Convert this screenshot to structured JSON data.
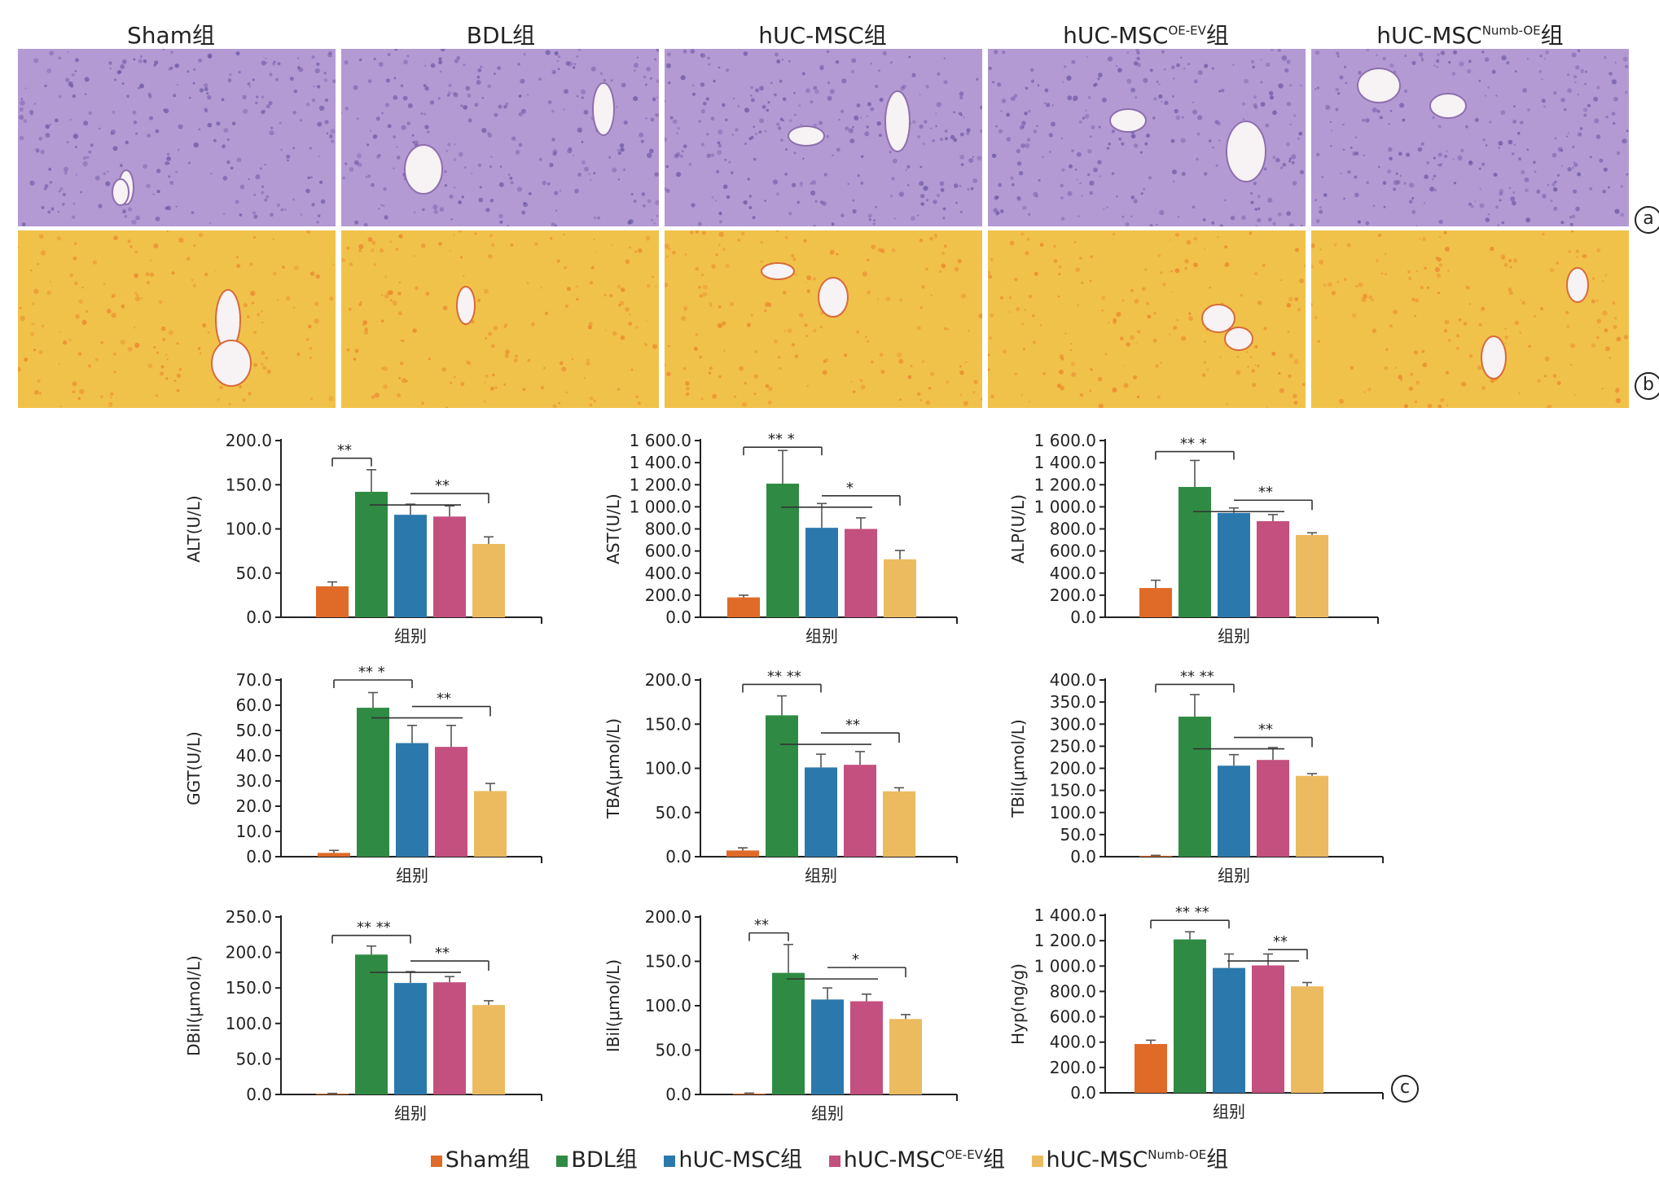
{
  "groups": [
    {
      "base": "Sham",
      "sup": "",
      "tail": "组",
      "color": "#e06a27"
    },
    {
      "base": "BDL",
      "sup": "",
      "tail": "组",
      "color": "#2f8b43"
    },
    {
      "base": "hUC-MSC",
      "sup": "",
      "tail": "组",
      "color": "#2b79ac"
    },
    {
      "base": "hUC-MSC",
      "sup": "OE-EV",
      "tail": "组",
      "color": "#c4507f"
    },
    {
      "base": "hUC-MSC",
      "sup": "Numb-OE",
      "tail": "组",
      "color": "#ecbb5f"
    }
  ],
  "panel_tags": {
    "a": "a",
    "b": "b",
    "c": "c"
  },
  "stain_colors": {
    "he_base": "#b49ad3",
    "he_dark": "#6d5aa6",
    "sr_base": "#f1c24a",
    "sr_dark": "#e9872e"
  },
  "chart_data": [
    {
      "type": "bar",
      "ylabel": "ALT(U/L)",
      "xlabel": "组别",
      "ylim": [
        0,
        200
      ],
      "yticks": [
        "0.0",
        "50.0",
        "100.0",
        "150.0",
        "200.0"
      ],
      "values": [
        35,
        142,
        116,
        114,
        83
      ],
      "errors": [
        5,
        25,
        12,
        12,
        8
      ],
      "annotations": [
        {
          "from": 0,
          "to": 1,
          "level": 180,
          "text": "**",
          "drop": true
        },
        {
          "from": 2,
          "to": 4,
          "level": 140,
          "text": "**",
          "drop": false
        }
      ]
    },
    {
      "type": "bar",
      "ylabel": "AST(U/L)",
      "xlabel": "组别",
      "ylim": [
        0,
        1600
      ],
      "yticks": [
        "0.0",
        "200.0",
        "400.0",
        "600.0",
        "800.0",
        "1 000.0",
        "1 200.0",
        "1 400.0",
        "1 600.0"
      ],
      "values": [
        180,
        1210,
        810,
        800,
        525
      ],
      "errors": [
        20,
        300,
        220,
        100,
        80
      ],
      "annotations": [
        {
          "from": 0,
          "to": 2,
          "level": 1540,
          "text": "** *",
          "drop": true
        },
        {
          "from": 2,
          "to": 4,
          "level": 1100,
          "text": "*",
          "drop": false
        }
      ]
    },
    {
      "type": "bar",
      "ylabel": "ALP(U/L)",
      "xlabel": "组别",
      "ylim": [
        0,
        1600
      ],
      "yticks": [
        "0.0",
        "200.0",
        "400.0",
        "600.0",
        "800.0",
        "1 000.0",
        "1 200.0",
        "1 400.0",
        "1 600.0"
      ],
      "values": [
        265,
        1180,
        945,
        870,
        745
      ],
      "errors": [
        70,
        240,
        45,
        60,
        20
      ],
      "annotations": [
        {
          "from": 0,
          "to": 2,
          "level": 1500,
          "text": "** *",
          "drop": true
        },
        {
          "from": 2,
          "to": 4,
          "level": 1060,
          "text": "**",
          "drop": false
        }
      ]
    },
    {
      "type": "bar",
      "ylabel": "GGT(U/L)",
      "xlabel": "组别",
      "ylim": [
        0,
        70
      ],
      "yticks": [
        "0.0",
        "10.0",
        "20.0",
        "30.0",
        "40.0",
        "50.0",
        "60.0",
        "70.0"
      ],
      "values": [
        1.5,
        59,
        45,
        43.5,
        26
      ],
      "errors": [
        1,
        6,
        7,
        8.5,
        3
      ],
      "annotations": [
        {
          "from": 0,
          "to": 2,
          "level": 70,
          "text": "** *",
          "drop": true
        },
        {
          "from": 2,
          "to": 4,
          "level": 59.5,
          "text": "**",
          "drop": false
        }
      ]
    },
    {
      "type": "bar",
      "ylabel": "TBA(μmol/L)",
      "xlabel": "组别",
      "ylim": [
        0,
        200
      ],
      "yticks": [
        "0.0",
        "50.0",
        "100.0",
        "150.0",
        "200.0"
      ],
      "values": [
        7,
        160,
        101,
        104,
        74
      ],
      "errors": [
        3,
        22,
        15,
        15,
        4
      ],
      "annotations": [
        {
          "from": 0,
          "to": 2,
          "level": 195,
          "text": "** **",
          "drop": true
        },
        {
          "from": 2,
          "to": 4,
          "level": 140,
          "text": "**",
          "drop": false
        }
      ]
    },
    {
      "type": "bar",
      "ylabel": "TBil(μmol/L)",
      "xlabel": "组别",
      "ylim": [
        0,
        400
      ],
      "yticks": [
        "0.0",
        "50.0",
        "100.0",
        "150.0",
        "200.0",
        "250.0",
        "300.0",
        "350.0",
        "400.0"
      ],
      "values": [
        2,
        317,
        206,
        219,
        183
      ],
      "errors": [
        1,
        50,
        25,
        28,
        5
      ],
      "annotations": [
        {
          "from": 0,
          "to": 2,
          "level": 390,
          "text": "** **",
          "drop": true
        },
        {
          "from": 2,
          "to": 4,
          "level": 270,
          "text": "**",
          "drop": false
        }
      ]
    },
    {
      "type": "bar",
      "ylabel": "DBil(μmol/L)",
      "xlabel": "组别",
      "ylim": [
        0,
        250
      ],
      "yticks": [
        "0.0",
        "50.0",
        "100.0",
        "150.0",
        "200.0",
        "250.0"
      ],
      "values": [
        1,
        197,
        157,
        158,
        126
      ],
      "errors": [
        0.5,
        12,
        16,
        8,
        6
      ],
      "annotations": [
        {
          "from": 0,
          "to": 2,
          "level": 224,
          "text": "** **",
          "drop": true
        },
        {
          "from": 2,
          "to": 4,
          "level": 188,
          "text": "**",
          "drop": false
        }
      ]
    },
    {
      "type": "bar",
      "ylabel": "IBil(μmol/L)",
      "xlabel": "组别",
      "ylim": [
        0,
        200
      ],
      "yticks": [
        "0.0",
        "50.0",
        "100.0",
        "150.0",
        "200.0"
      ],
      "values": [
        1,
        137,
        107,
        105,
        85
      ],
      "errors": [
        0.5,
        32,
        13,
        8,
        5
      ],
      "annotations": [
        {
          "from": 0,
          "to": 1,
          "level": 182,
          "text": "**",
          "drop": true
        },
        {
          "from": 2,
          "to": 4,
          "level": 143,
          "text": "*",
          "drop": false
        }
      ]
    },
    {
      "type": "bar",
      "ylabel": "Hyp(ng/g)",
      "xlabel": "组别",
      "ylim": [
        0,
        1400
      ],
      "yticks": [
        "0.0",
        "200.0",
        "400.0",
        "600.0",
        "800.0",
        "1 000.0",
        "1 200.0",
        "1 400.0"
      ],
      "values": [
        385,
        1210,
        985,
        1005,
        840
      ],
      "errors": [
        30,
        60,
        110,
        90,
        30
      ],
      "annotations": [
        {
          "from": 0,
          "to": 2,
          "level": 1360,
          "text": "** **",
          "drop": true
        },
        {
          "from": 3,
          "to": 4,
          "level": 1130,
          "text": "**",
          "drop": false
        }
      ]
    }
  ]
}
